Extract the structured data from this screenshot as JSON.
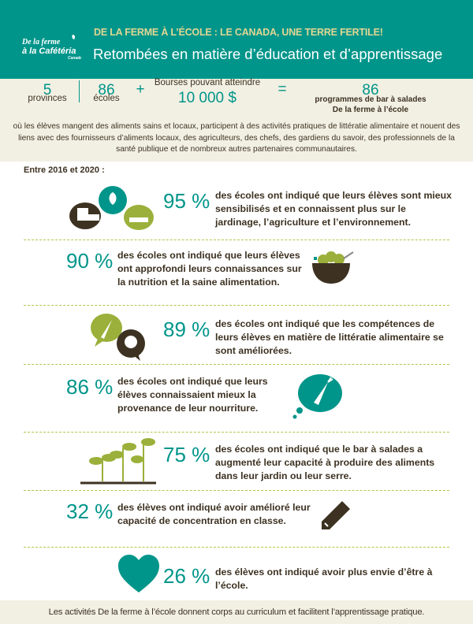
{
  "header": {
    "title": "DE LA FERME À L’ÉCOLE : LE CANADA, UNE TERRE FERTILE!",
    "subtitle": "Retombées en matière d’éducation et d’apprentissage",
    "logo_text": "De la ferme à la Cafétéria Canada"
  },
  "summary": {
    "provinces": {
      "value": "5",
      "label": "provinces"
    },
    "schools": {
      "value": "86",
      "label": "écoles"
    },
    "plus": "+",
    "grants": {
      "label": "Bourses pouvant atteindre",
      "value": "10 000 $"
    },
    "equals": "=",
    "programs": {
      "value": "86",
      "label_line1": "programmes de bar à salades",
      "label_line2": "De la ferme à l’école"
    },
    "description": "où les élèves mangent des aliments sains et locaux, participent à des activités pratiques de littératie alimentaire et nouent des liens avec des fournisseurs d’aliments locaux, des agriculteurs, des chefs, des gardiens du savoir, des professionnels de la santé publique et de nombreux autres partenaires communautaires."
  },
  "period": "Entre 2016 et 2020 :",
  "stats": [
    {
      "percent": "95 %",
      "text": "des écoles ont indiqué que leurs élèves sont mieux sensibilisés et en connaissent plus sur le jardinage, l’agriculture et l’environnement.",
      "icon": "farm-speech-bubbles-icon"
    },
    {
      "percent": "90 %",
      "text": "des écoles ont indiqué que leurs élèves ont approfondi leurs connaissances sur la nutrition et la saine alimentation.",
      "icon": "salad-bowl-icon"
    },
    {
      "percent": "89 %",
      "text": "des écoles ont indiqué que les compétences de leurs élèves en matière de littératie alimentaire se sont améliorées.",
      "icon": "carrot-question-bubbles-icon"
    },
    {
      "percent": "86 %",
      "text": "des écoles ont indiqué que leurs élèves connaissaient mieux la provenance de leur nourriture.",
      "icon": "carrot-thought-bubble-icon"
    },
    {
      "percent": "75 %",
      "text": "des écoles ont indiqué que le bar à salades a augmenté leur capacité à produire des aliments dans leur jardin ou leur serre.",
      "icon": "seedlings-icon"
    },
    {
      "percent": "32 %",
      "text": "des élèves ont indiqué avoir amélioré leur capacité de concentration en classe.",
      "icon": "pencil-icon"
    },
    {
      "percent": "26 %",
      "text": "des élèves ont indiqué avoir plus envie d’être à l’école.",
      "icon": "heart-icon"
    }
  ],
  "footer": "Les activités De la ferme à l’école donnent corps au curriculum et facilitent l’apprentissage pratique.",
  "colors": {
    "teal": "#00958a",
    "cream": "#f2f0e3",
    "gold": "#e3d693",
    "brown": "#3d3222",
    "olive": "#9bb03a"
  }
}
